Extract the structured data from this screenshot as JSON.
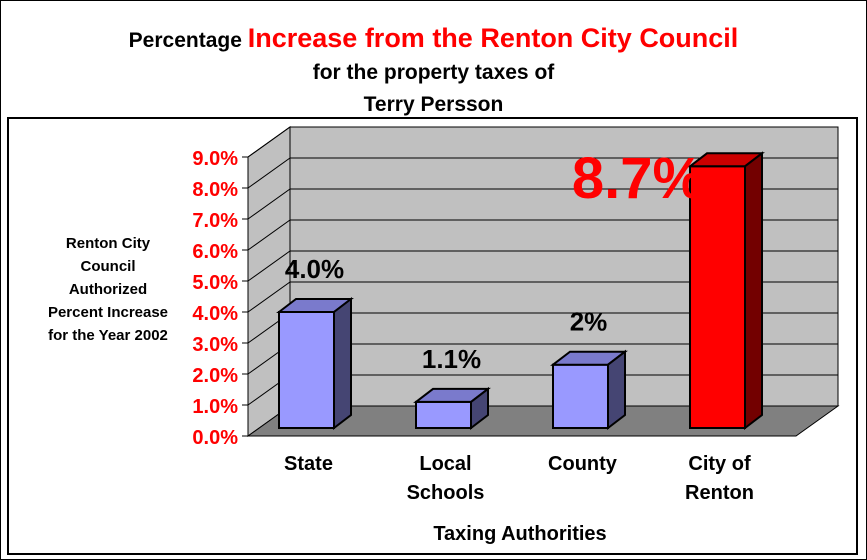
{
  "title": {
    "prefix": "Percentage ",
    "highlight": "Increase from the Renton City Council",
    "line2": "for the property taxes of",
    "line3": "Terry Persson"
  },
  "colors": {
    "bar_blue": "#9999ff",
    "bar_red": "#ff0000",
    "wall": "#c0c0c0",
    "floor": "#808080",
    "tick_label": "#ff0000"
  },
  "chart_data": {
    "type": "bar",
    "categories": [
      [
        "State"
      ],
      [
        "Local",
        "Schools"
      ],
      [
        "County"
      ],
      [
        "City of",
        "Renton"
      ]
    ],
    "values": [
      4.0,
      1.1,
      2.3,
      8.7
    ],
    "data_labels": [
      "4.0%",
      "1.1%",
      "2%",
      "8.7%"
    ],
    "title": "Percentage Increase from the Renton City Council for the property taxes of Terry Persson",
    "xlabel": "Taxing Authorities",
    "ylabel": [
      "Renton City",
      "Council",
      "Authorized",
      "Percent Increase",
      "for the Year 2002"
    ],
    "ylim": [
      0,
      9
    ],
    "yticks": [
      "0.0%",
      "1.0%",
      "2.0%",
      "3.0%",
      "4.0%",
      "5.0%",
      "6.0%",
      "7.0%",
      "8.0%",
      "9.0%"
    ],
    "grid": true,
    "legend": "none"
  }
}
